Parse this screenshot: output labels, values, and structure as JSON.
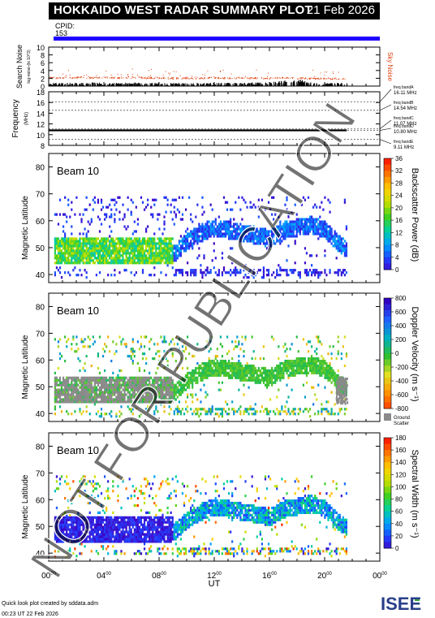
{
  "header": {
    "title": "HOKKAIDO WEST RADAR SUMMARY PLOT",
    "date": "21 Feb 2026",
    "cpid_label": "CPID:",
    "cpid_value": "153"
  },
  "footer": {
    "credit": "Quick look plot created by sddata.adm",
    "created": "00:23 UT 22 Feb 2026",
    "logo_text": "ISEE"
  },
  "watermark": "NOT FOR PUBLICATION",
  "colors": {
    "cpid_bar": "#2000ff",
    "noise": "#e04010",
    "sky_label": "#e04010"
  },
  "chart_data": [
    {
      "type": "scatter",
      "panel": "noise",
      "ylabel": "Search Noise",
      "ylabel_sub": "log-noise-(tx 10^3)",
      "right_label": "Sky Noise",
      "ylim": [
        0,
        10
      ],
      "yticks": [
        "0",
        "2",
        "4",
        "6",
        "8",
        "10"
      ],
      "series": [
        {
          "name": "Sky Noise",
          "x": [
            0,
            1,
            2,
            3,
            4,
            5,
            6,
            7,
            8,
            9,
            10,
            11,
            12,
            13,
            14,
            15,
            16,
            17,
            18,
            19,
            20,
            21,
            22
          ],
          "values": [
            2.2,
            2.2,
            2.3,
            2.3,
            2.3,
            2.2,
            2.3,
            2.2,
            2.2,
            2.1,
            2.1,
            2.1,
            2.2,
            2.1,
            2.2,
            2.1,
            2.1,
            2.2,
            2.1,
            2.0,
            2.0,
            2.0,
            2.0
          ]
        },
        {
          "name": "search noise",
          "x": [
            0,
            1,
            2,
            3,
            4,
            5,
            6,
            7,
            8,
            9,
            10,
            11,
            12,
            13,
            14,
            15,
            16,
            17,
            18,
            19,
            20,
            21,
            22
          ],
          "values": [
            0.7,
            0.7,
            0.7,
            0.8,
            0.7,
            0.7,
            0.8,
            0.7,
            0.7,
            0.7,
            0.7,
            0.7,
            0.7,
            0.7,
            0.7,
            0.8,
            0.8,
            1.2,
            1.6,
            0.8,
            0.7,
            0.7,
            0.7
          ]
        }
      ]
    },
    {
      "type": "line",
      "panel": "frequency",
      "ylabel": "Frequency",
      "ylabel_unit": "(MHz)",
      "ylim": [
        8,
        18
      ],
      "yticks": [
        "8",
        "10",
        "12",
        "14",
        "16",
        "18"
      ],
      "value": 10.8,
      "bands": [
        {
          "label": "freq bandA",
          "value": "16.11 MHz",
          "mhz": 16.11
        },
        {
          "label": "freq bandB",
          "value": "14.54 MHz",
          "mhz": 14.54
        },
        {
          "label": "freq bandC",
          "value": "11.07 MHz",
          "mhz": 11.07
        },
        {
          "label": "freq bandD",
          "value": "10.80 MHz",
          "mhz": 10.8
        },
        {
          "label": "freq bandE",
          "value": "9.11 MHz",
          "mhz": 9.11
        }
      ]
    },
    {
      "type": "heatmap",
      "panel": "power",
      "beam_label": "Beam 10",
      "ylabel": "Magnetic Latitude",
      "ylim": [
        37,
        85
      ],
      "yticks": [
        "40",
        "50",
        "60",
        "70",
        "80"
      ],
      "colorbar_label": "Backscatter Power (dB)",
      "colorbar_ticks": [
        "0",
        "4",
        "8",
        "12",
        "16",
        "20",
        "24",
        "28",
        "32",
        "36"
      ],
      "colorbar_range": [
        0,
        36
      ]
    },
    {
      "type": "heatmap",
      "panel": "velocity",
      "beam_label": "Beam 10",
      "ylabel": "Magnetic Latitude",
      "ylim": [
        37,
        85
      ],
      "yticks": [
        "40",
        "50",
        "60",
        "70",
        "80"
      ],
      "colorbar_label": "Doppler Velocity (m s⁻¹)",
      "colorbar_ticks": [
        "800",
        "600",
        "400",
        "200",
        "0",
        "-200",
        "-400",
        "-600",
        "-800"
      ],
      "colorbar_range": [
        800,
        -800
      ],
      "ground_scatter_label": [
        "Ground",
        "Scatter"
      ]
    },
    {
      "type": "heatmap",
      "panel": "width",
      "beam_label": "Beam 10",
      "ylabel": "Magnetic Latitude",
      "ylim": [
        37,
        85
      ],
      "yticks": [
        "40",
        "50",
        "60",
        "70",
        "80"
      ],
      "colorbar_label": "Spectral Width (m s⁻¹)",
      "colorbar_ticks": [
        "0",
        "20",
        "40",
        "60",
        "80",
        "100",
        "120",
        "140",
        "160",
        "180"
      ],
      "colorbar_range": [
        0,
        180
      ]
    }
  ],
  "time_axis": {
    "xlabel": "UT",
    "xlim": [
      0,
      24
    ],
    "ticks": [
      {
        "h": "00",
        "m": "00"
      },
      {
        "h": "04",
        "m": "00"
      },
      {
        "h": "08",
        "m": "00"
      },
      {
        "h": "12",
        "m": "00"
      },
      {
        "h": "16",
        "m": "00"
      },
      {
        "h": "20",
        "m": "00"
      },
      {
        "h": "00",
        "m": "00"
      }
    ],
    "data_end_hour": 21.6
  }
}
